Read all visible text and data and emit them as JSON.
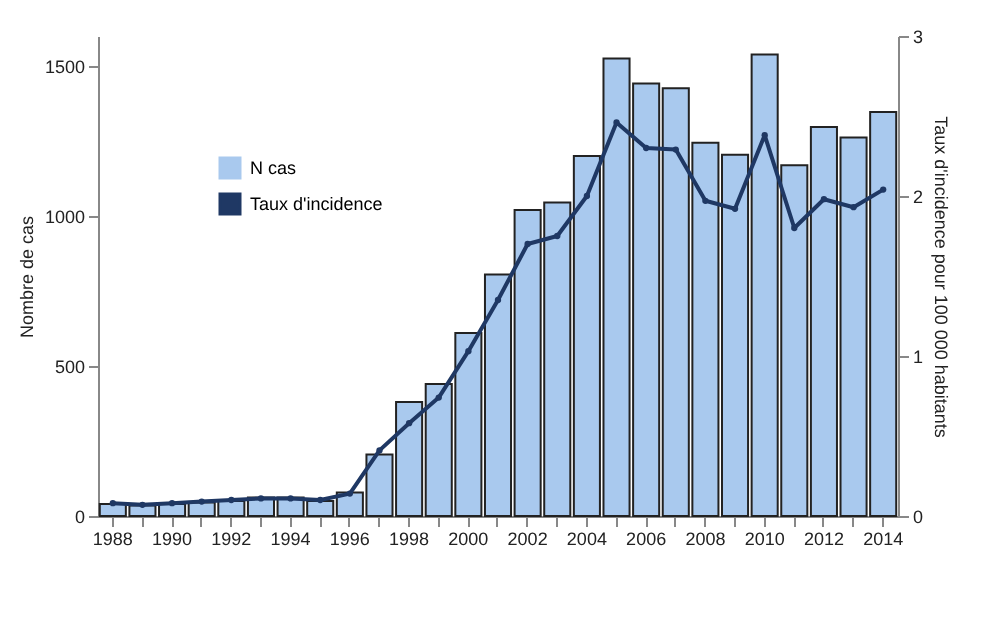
{
  "chart_data": {
    "type": "bar",
    "xlabel": null,
    "ylabel": "Nombre de cas",
    "y2label": "Taux d'incidence pour 100 000 habitants",
    "categories": [
      "1988",
      null,
      "1990",
      null,
      "1992",
      null,
      "1994",
      null,
      "1996",
      null,
      "1998",
      null,
      "2000",
      null,
      "2002",
      null,
      "2004",
      null,
      "2006",
      null,
      "2008",
      null,
      "2010",
      null,
      "2012",
      null,
      "2014"
    ],
    "series": [
      {
        "name": "N cas",
        "color": "#a9c9ee",
        "values": [
          40,
          35,
          40,
          45,
          50,
          62,
          62,
          50,
          78,
          205,
          380,
          440,
          610,
          805,
          1020,
          1045,
          1200,
          1525,
          1442,
          1426,
          1244,
          1204,
          1538,
          1169,
          1297,
          1262,
          1347
        ]
      },
      {
        "name": "Taux d'incidence",
        "type": "line",
        "axis": "y2",
        "color": "#1f3864",
        "marker": "circle",
        "values": [
          0.08,
          0.07,
          0.08,
          0.09,
          0.1,
          0.11,
          0.11,
          0.1,
          0.14,
          0.41,
          0.58,
          0.74,
          1.03,
          1.35,
          1.7,
          1.75,
          2.0,
          2.46,
          2.3,
          2.29,
          1.97,
          1.92,
          2.38,
          1.8,
          1.98,
          1.93,
          2.04
        ]
      }
    ],
    "ylim": [
      0,
      1600
    ],
    "yticks": [
      0,
      500,
      1000,
      1500
    ],
    "y2lim": [
      0,
      3
    ],
    "y2ticks": [
      0,
      1,
      2,
      3
    ],
    "grid": false,
    "legend": "top left"
  }
}
